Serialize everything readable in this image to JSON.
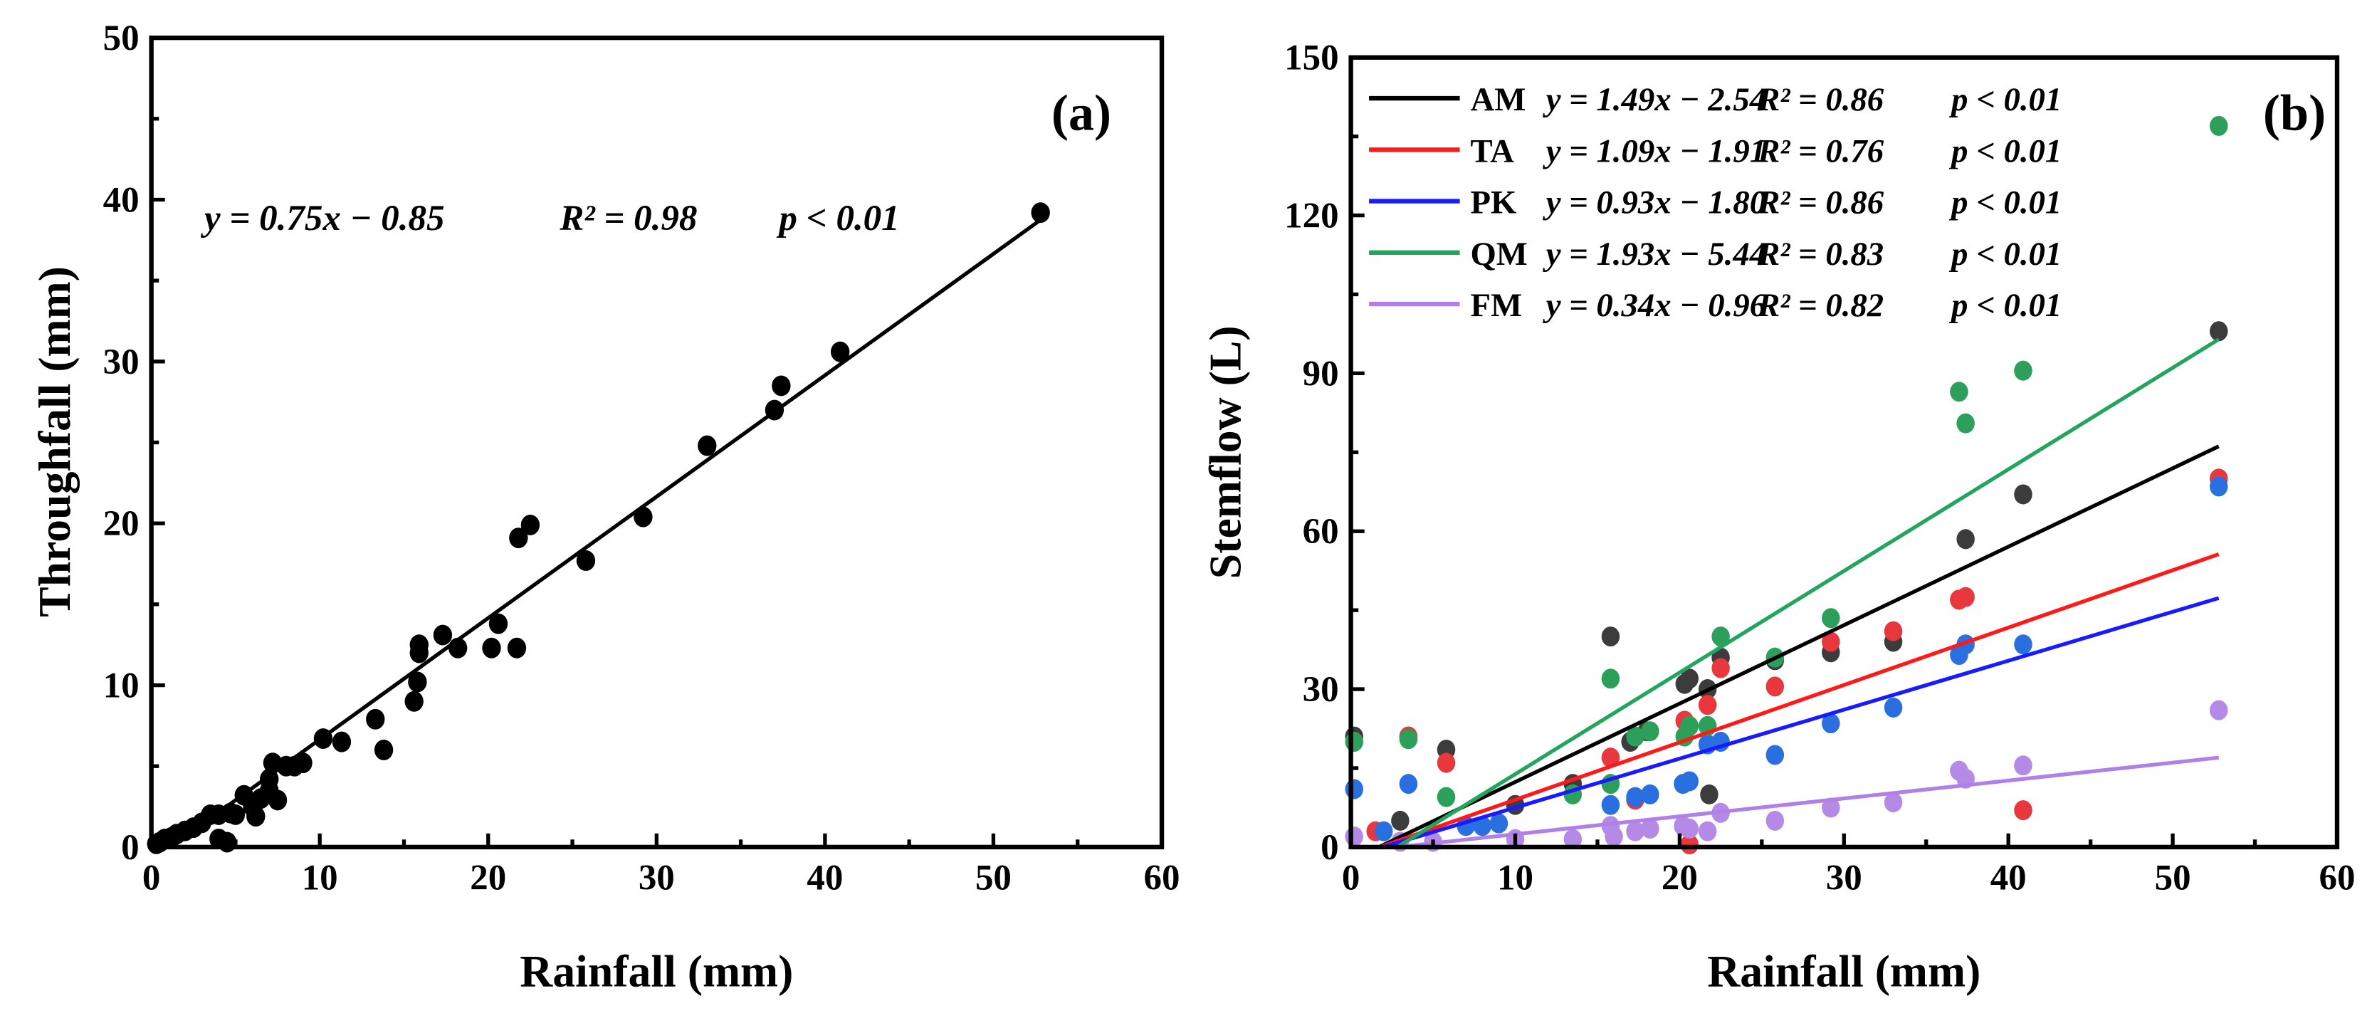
{
  "chart_data": [
    {
      "type": "scatter",
      "panel_label": "(a)",
      "xlabel": "Rainfall (mm)",
      "ylabel": "Throughfall (mm)",
      "xlim": [
        0,
        60
      ],
      "ylim": [
        0,
        50
      ],
      "xticks": [
        "0",
        "10",
        "20",
        "30",
        "40",
        "50",
        "60"
      ],
      "yticks": [
        "0",
        "10",
        "20",
        "30",
        "40",
        "50"
      ],
      "grid": false,
      "annotation": {
        "equation": "y = 0.75x − 0.85",
        "r2": "R² = 0.98",
        "p": "p < 0.01"
      },
      "fit": {
        "slope": 0.75,
        "intercept": -0.85,
        "xrange": [
          1.2,
          52.8
        ]
      },
      "color": "#000000",
      "points": [
        [
          0.3,
          0.2
        ],
        [
          0.5,
          0.3
        ],
        [
          0.8,
          0.5
        ],
        [
          1,
          0.5
        ],
        [
          1.2,
          0.6
        ],
        [
          1.5,
          0.8
        ],
        [
          2,
          1
        ],
        [
          2.5,
          1.2
        ],
        [
          3,
          1.5
        ],
        [
          3.5,
          2
        ],
        [
          4,
          2
        ],
        [
          4,
          0.5
        ],
        [
          4.5,
          0.3
        ],
        [
          4.7,
          2.1
        ],
        [
          5,
          2
        ],
        [
          5.5,
          3.2
        ],
        [
          6,
          2.5
        ],
        [
          6.2,
          1.9
        ],
        [
          6.5,
          3
        ],
        [
          7,
          3.5
        ],
        [
          7,
          4.2
        ],
        [
          7.2,
          5.2
        ],
        [
          7.5,
          2.9
        ],
        [
          8,
          5
        ],
        [
          8.5,
          5
        ],
        [
          9,
          5.2
        ],
        [
          10.2,
          6.7
        ],
        [
          11.3,
          6.5
        ],
        [
          13.3,
          7.9
        ],
        [
          13.8,
          6
        ],
        [
          15.6,
          9
        ],
        [
          15.8,
          10.2
        ],
        [
          15.9,
          12
        ],
        [
          15.9,
          12.5
        ],
        [
          17.3,
          13.1
        ],
        [
          18.2,
          12.3
        ],
        [
          20.2,
          12.3
        ],
        [
          20.6,
          13.8
        ],
        [
          21.7,
          12.3
        ],
        [
          21.8,
          19.1
        ],
        [
          22.5,
          19.9
        ],
        [
          25.8,
          17.7
        ],
        [
          29.2,
          20.4
        ],
        [
          33,
          24.8
        ],
        [
          37,
          27
        ],
        [
          37.4,
          28.5
        ],
        [
          40.9,
          30.6
        ],
        [
          52.8,
          39.2
        ]
      ]
    },
    {
      "type": "scatter",
      "panel_label": "(b)",
      "xlabel": "Rainfall (mm)",
      "ylabel": "Stemflow (L)",
      "xlim": [
        0,
        60
      ],
      "ylim": [
        0,
        150
      ],
      "xticks": [
        "0",
        "10",
        "20",
        "30",
        "40",
        "50",
        "60"
      ],
      "yticks": [
        "0",
        "30",
        "60",
        "90",
        "120",
        "150"
      ],
      "grid": false,
      "legend_position": "top-left",
      "series": [
        {
          "name": "AM",
          "color": "#000000",
          "point_color": "#3c3c3c",
          "equation": "y = 1.49x − 2.54",
          "r2": "R² = 0.86",
          "p": "p < 0.01",
          "slope": 1.49,
          "intercept": -2.54,
          "points": [
            [
              0.2,
              21
            ],
            [
              3.5,
              21
            ],
            [
              5.8,
              18.5
            ],
            [
              3,
              5
            ],
            [
              10,
              8
            ],
            [
              13.5,
              12
            ],
            [
              15.8,
              40
            ],
            [
              17,
              20
            ],
            [
              18,
              22
            ],
            [
              20.3,
              31
            ],
            [
              20.6,
              32
            ],
            [
              21.7,
              30
            ],
            [
              21.8,
              10
            ],
            [
              22.5,
              36
            ],
            [
              25.8,
              35.5
            ],
            [
              29.2,
              37
            ],
            [
              33,
              39
            ],
            [
              37,
              47
            ],
            [
              37.4,
              58.5
            ],
            [
              40.9,
              67
            ],
            [
              52.8,
              98
            ]
          ]
        },
        {
          "name": "TA",
          "color": "#ff1a1a",
          "point_color": "#e8383d",
          "equation": "y = 1.09x − 1.91",
          "r2": "R² = 0.76",
          "p": "p < 0.01",
          "slope": 1.09,
          "intercept": -1.91,
          "points": [
            [
              1.5,
              3
            ],
            [
              3.5,
              21
            ],
            [
              5.8,
              16
            ],
            [
              15.8,
              17
            ],
            [
              17.3,
              9
            ],
            [
              20.3,
              24
            ],
            [
              20.6,
              0.5
            ],
            [
              21.7,
              27
            ],
            [
              22.5,
              34
            ],
            [
              25.8,
              30.5
            ],
            [
              29.2,
              39
            ],
            [
              33,
              41
            ],
            [
              37,
              47
            ],
            [
              37.4,
              47.5
            ],
            [
              40.9,
              7
            ],
            [
              52.8,
              70
            ]
          ]
        },
        {
          "name": "PK",
          "color": "#1a1aff",
          "point_color": "#2a6fe0",
          "equation": "y = 0.93x − 1.80",
          "r2": "R² = 0.86",
          "p": "p < 0.01",
          "slope": 0.93,
          "intercept": -1.8,
          "points": [
            [
              0.2,
              11
            ],
            [
              2,
              3
            ],
            [
              3.5,
              12
            ],
            [
              7,
              4
            ],
            [
              8,
              4
            ],
            [
              9,
              4.5
            ],
            [
              15.8,
              8
            ],
            [
              17.3,
              9.5
            ],
            [
              18.2,
              10
            ],
            [
              20.2,
              12
            ],
            [
              20.6,
              12.5
            ],
            [
              21.7,
              19.5
            ],
            [
              22.5,
              20
            ],
            [
              25.8,
              17.5
            ],
            [
              29.2,
              23.5
            ],
            [
              33,
              26.5
            ],
            [
              37,
              36.5
            ],
            [
              37.4,
              38.5
            ],
            [
              40.9,
              38.5
            ],
            [
              52.8,
              68.5
            ]
          ]
        },
        {
          "name": "QM",
          "color": "#22a55e",
          "point_color": "#2ca05a",
          "equation": "y = 1.93x − 5.44",
          "r2": "R² = 0.83",
          "p": "p < 0.01",
          "slope": 1.93,
          "intercept": -5.44,
          "points": [
            [
              0.2,
              20
            ],
            [
              3.5,
              20.5
            ],
            [
              5.8,
              9.5
            ],
            [
              13.5,
              10
            ],
            [
              15.8,
              32
            ],
            [
              15.8,
              12
            ],
            [
              17.3,
              21
            ],
            [
              18.2,
              22
            ],
            [
              20.3,
              21
            ],
            [
              20.6,
              23
            ],
            [
              21.7,
              23
            ],
            [
              22.5,
              40
            ],
            [
              25.8,
              36
            ],
            [
              29.2,
              43.5
            ],
            [
              37,
              86.5
            ],
            [
              37.4,
              80.5
            ],
            [
              40.9,
              90.5
            ],
            [
              52.8,
              137
            ]
          ]
        },
        {
          "name": "FM",
          "color": "#b080e8",
          "point_color": "#b58ae6",
          "equation": "y = 0.34x − 0.96",
          "r2": "R² = 0.82",
          "p": "p < 0.01",
          "slope": 0.34,
          "intercept": -0.96,
          "points": [
            [
              0.2,
              2
            ],
            [
              3,
              1
            ],
            [
              5,
              1
            ],
            [
              10,
              1.5
            ],
            [
              13.5,
              1.5
            ],
            [
              15.8,
              4
            ],
            [
              16,
              2
            ],
            [
              17.3,
              3
            ],
            [
              18.2,
              3.5
            ],
            [
              20.2,
              4
            ],
            [
              20.6,
              3.5
            ],
            [
              21.7,
              3
            ],
            [
              22.5,
              6.5
            ],
            [
              25.8,
              5
            ],
            [
              29.2,
              7.5
            ],
            [
              33,
              8.5
            ],
            [
              37,
              14.5
            ],
            [
              37.4,
              13
            ],
            [
              40.9,
              15.5
            ],
            [
              52.8,
              26
            ]
          ]
        }
      ]
    }
  ]
}
